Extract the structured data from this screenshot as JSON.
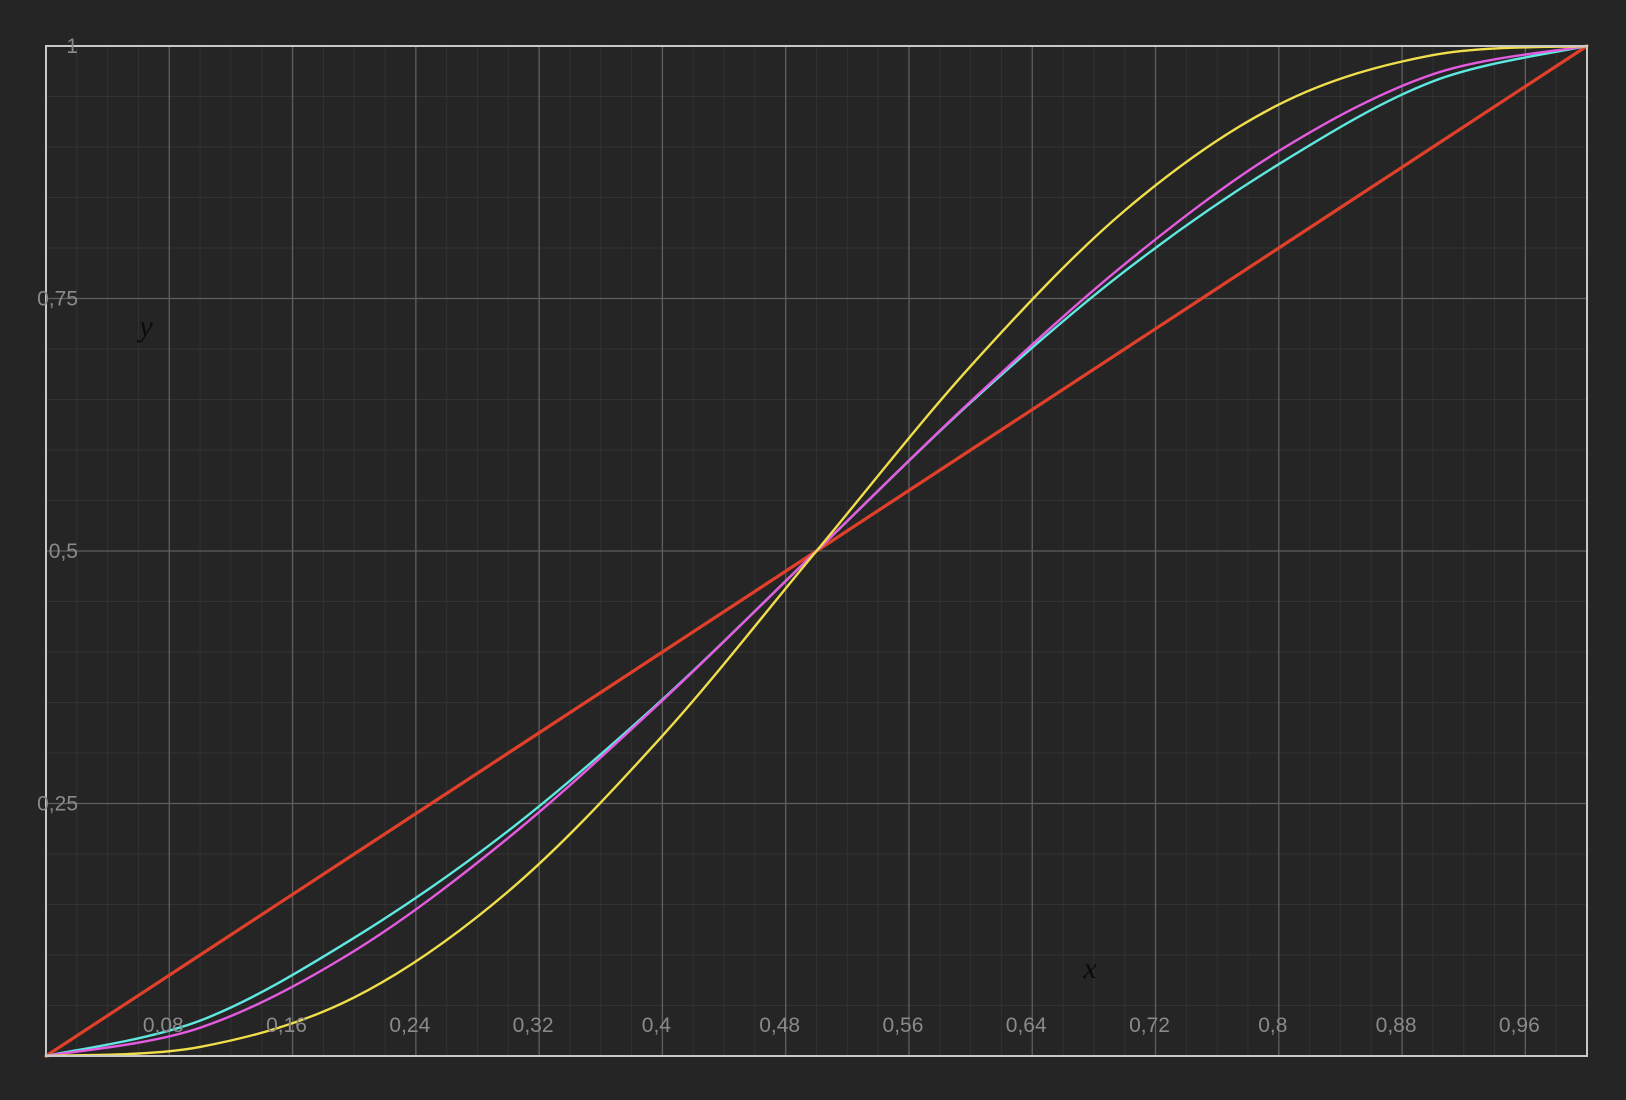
{
  "chart_data": {
    "type": "line",
    "title": "",
    "xlabel": "x",
    "ylabel": "y",
    "xlim": [
      0,
      1
    ],
    "ylim": [
      0,
      1
    ],
    "grid": true,
    "legend": "none",
    "background": "#252525",
    "x_ticks": [
      {
        "v": 0.08,
        "label": "0,08"
      },
      {
        "v": 0.16,
        "label": "0,16"
      },
      {
        "v": 0.24,
        "label": "0,24"
      },
      {
        "v": 0.32,
        "label": "0,32"
      },
      {
        "v": 0.4,
        "label": "0,4"
      },
      {
        "v": 0.48,
        "label": "0,48"
      },
      {
        "v": 0.56,
        "label": "0,56"
      },
      {
        "v": 0.64,
        "label": "0,64"
      },
      {
        "v": 0.72,
        "label": "0,72"
      },
      {
        "v": 0.8,
        "label": "0,8"
      },
      {
        "v": 0.88,
        "label": "0,88"
      },
      {
        "v": 0.96,
        "label": "0,96"
      }
    ],
    "y_ticks": [
      {
        "v": 0.25,
        "label": "0,25"
      },
      {
        "v": 0.5,
        "label": "0,5"
      },
      {
        "v": 0.75,
        "label": "0,75"
      },
      {
        "v": 1,
        "label": "1"
      }
    ],
    "series": [
      {
        "color": "#e0402a",
        "x": [
          0,
          0.1,
          0.2,
          0.3,
          0.4,
          0.5,
          0.6,
          0.7,
          0.8,
          0.9,
          1.0
        ],
        "y": [
          0,
          0.1,
          0.2,
          0.3,
          0.4,
          0.5,
          0.6,
          0.7,
          0.8,
          0.9,
          1.0
        ]
      },
      {
        "color": "#5ee8e0",
        "x": [
          0,
          0.1,
          0.2,
          0.3,
          0.4,
          0.5,
          0.6,
          0.7,
          0.8,
          0.9,
          1.0
        ],
        "y": [
          0,
          0.035,
          0.117,
          0.223,
          0.353,
          0.5,
          0.647,
          0.777,
          0.883,
          0.965,
          1.0
        ]
      },
      {
        "color": "#e45be0",
        "x": [
          0,
          0.1,
          0.2,
          0.3,
          0.4,
          0.5,
          0.6,
          0.7,
          0.8,
          0.9,
          1.0
        ],
        "y": [
          0,
          0.028,
          0.104,
          0.216,
          0.352,
          0.5,
          0.648,
          0.784,
          0.896,
          0.972,
          1.0
        ]
      },
      {
        "color": "#f0de4a",
        "x": [
          0,
          0.1,
          0.2,
          0.3,
          0.4,
          0.5,
          0.6,
          0.7,
          0.8,
          0.9,
          1.0
        ],
        "y": [
          0,
          0.009,
          0.058,
          0.163,
          0.317,
          0.5,
          0.683,
          0.837,
          0.942,
          0.991,
          1.0
        ]
      }
    ]
  }
}
